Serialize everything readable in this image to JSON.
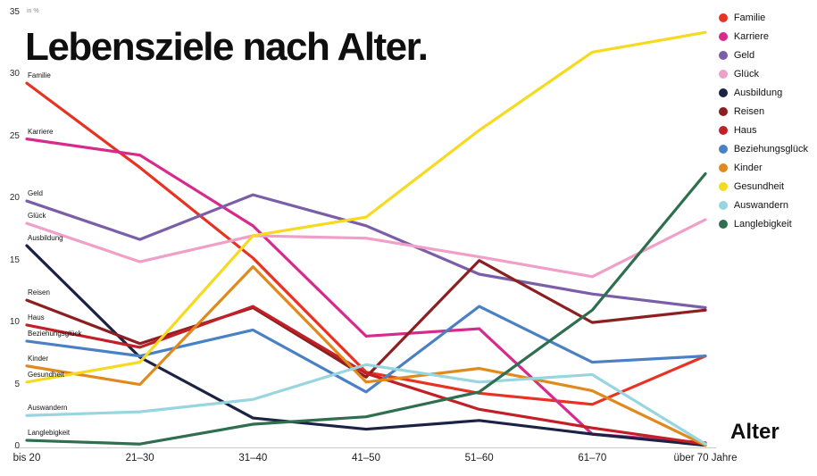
{
  "title": "Lebensziele nach Alter.",
  "y_axis_unit": "in %",
  "x_axis_title": "Alter",
  "chart_data": {
    "type": "line",
    "categories": [
      "bis 20",
      "21–30",
      "31–40",
      "41–50",
      "51–60",
      "61–70",
      "über 70 Jahre"
    ],
    "ylim": [
      0,
      35
    ],
    "yticks": [
      0,
      5,
      10,
      15,
      20,
      25,
      30,
      35
    ],
    "grid": false,
    "legend_position": "top-right",
    "series": [
      {
        "name": "Familie",
        "color": "#e63323",
        "values": [
          29.3,
          22.5,
          15.2,
          6.0,
          4.3,
          3.4,
          7.3
        ]
      },
      {
        "name": "Karriere",
        "color": "#d62a8c",
        "values": [
          24.8,
          23.5,
          17.8,
          8.9,
          9.5,
          1.0,
          0.3
        ]
      },
      {
        "name": "Geld",
        "color": "#7a5ea8",
        "values": [
          19.8,
          16.7,
          20.3,
          17.8,
          13.9,
          12.3,
          11.2
        ]
      },
      {
        "name": "Glück",
        "color": "#f0a0c8",
        "values": [
          18.0,
          14.9,
          17.0,
          16.8,
          15.3,
          13.7,
          18.3
        ]
      },
      {
        "name": "Ausbildung",
        "color": "#1c2244",
        "values": [
          16.2,
          7.2,
          2.3,
          1.4,
          2.1,
          1.0,
          0.1
        ]
      },
      {
        "name": "Reisen",
        "color": "#8c1f1f",
        "values": [
          11.8,
          8.3,
          11.2,
          5.6,
          15.0,
          10.0,
          11.0
        ]
      },
      {
        "name": "Haus",
        "color": "#c22027",
        "values": [
          9.8,
          8.0,
          11.3,
          5.9,
          3.0,
          1.5,
          0.2
        ]
      },
      {
        "name": "Beziehungsglück",
        "color": "#4a80c4",
        "values": [
          8.5,
          7.3,
          9.4,
          4.4,
          11.3,
          6.8,
          7.3
        ]
      },
      {
        "name": "Kinder",
        "color": "#e08a1e",
        "values": [
          6.5,
          5.0,
          14.5,
          5.2,
          6.3,
          4.5,
          0.1
        ]
      },
      {
        "name": "Gesundheit",
        "color": "#f6da1f",
        "values": [
          5.2,
          6.8,
          17.0,
          18.5,
          25.5,
          31.8,
          33.4
        ]
      },
      {
        "name": "Auswandern",
        "color": "#97d6de",
        "values": [
          2.5,
          2.8,
          3.8,
          6.6,
          5.2,
          5.8,
          0.2
        ]
      },
      {
        "name": "Langlebigkeit",
        "color": "#2f6e4e",
        "values": [
          0.5,
          0.2,
          1.8,
          2.4,
          4.4,
          11.0,
          22.0
        ]
      }
    ]
  }
}
